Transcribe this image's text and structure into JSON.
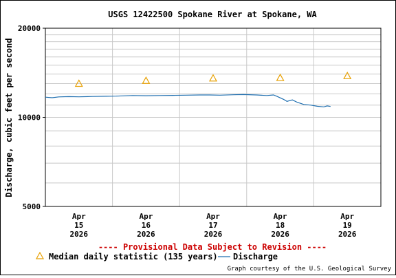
{
  "chart_data": {
    "type": "line",
    "title": "USGS 12422500 Spokane River at Spokane, WA",
    "ylabel": "Discharge, cubic feet per second",
    "xlabel": "",
    "y_scale": "log",
    "ylim": [
      5000,
      20000
    ],
    "y_ticks": [
      {
        "value": 5000,
        "label": "5000"
      },
      {
        "value": 10000,
        "label": "10000"
      },
      {
        "value": 20000,
        "label": "20000"
      }
    ],
    "x_ticks": [
      {
        "day": 15.5,
        "lines": [
          "Apr",
          "15",
          "2026"
        ]
      },
      {
        "day": 16.5,
        "lines": [
          "Apr",
          "16",
          "2026"
        ]
      },
      {
        "day": 17.5,
        "lines": [
          "Apr",
          "17",
          "2026"
        ]
      },
      {
        "day": 18.5,
        "lines": [
          "Apr",
          "18",
          "2026"
        ]
      },
      {
        "day": 19.5,
        "lines": [
          "Apr",
          "19",
          "2026"
        ]
      }
    ],
    "xlim": [
      15.0,
      20.0
    ],
    "grid": true,
    "series": [
      {
        "name": "Discharge",
        "style": "line",
        "color": "#1f6fb0",
        "points": [
          [
            15.0,
            11700
          ],
          [
            15.1,
            11650
          ],
          [
            15.2,
            11720
          ],
          [
            15.35,
            11750
          ],
          [
            15.5,
            11730
          ],
          [
            15.7,
            11760
          ],
          [
            15.9,
            11780
          ],
          [
            16.05,
            11790
          ],
          [
            16.3,
            11850
          ],
          [
            16.5,
            11830
          ],
          [
            16.7,
            11850
          ],
          [
            16.9,
            11860
          ],
          [
            17.1,
            11880
          ],
          [
            17.3,
            11900
          ],
          [
            17.45,
            11900
          ],
          [
            17.6,
            11880
          ],
          [
            17.8,
            11920
          ],
          [
            17.95,
            11940
          ],
          [
            18.15,
            11900
          ],
          [
            18.3,
            11850
          ],
          [
            18.4,
            11900
          ],
          [
            18.45,
            11780
          ],
          [
            18.55,
            11500
          ],
          [
            18.6,
            11320
          ],
          [
            18.68,
            11450
          ],
          [
            18.75,
            11250
          ],
          [
            18.85,
            11050
          ],
          [
            18.95,
            11000
          ],
          [
            19.05,
            10900
          ],
          [
            19.15,
            10850
          ],
          [
            19.2,
            10930
          ],
          [
            19.25,
            10880
          ]
        ]
      },
      {
        "name": "Median daily statistic (135 years)",
        "style": "marker",
        "marker": "triangle",
        "color": "#e8a000",
        "points": [
          [
            15.5,
            13000
          ],
          [
            16.5,
            13300
          ],
          [
            17.5,
            13550
          ],
          [
            18.5,
            13600
          ],
          [
            19.5,
            13800
          ]
        ]
      }
    ],
    "legend": {
      "position": "bottom",
      "entries": [
        {
          "label": "Median daily statistic (135 years)",
          "symbol": "triangle",
          "color": "#e8a000"
        },
        {
          "label": "Discharge",
          "symbol": "line",
          "color": "#1f6fb0"
        }
      ]
    },
    "annotations": {
      "provisional": "---- Provisional Data Subject to Revision ----",
      "provisional_color": "#cc0000",
      "credit": "Graph courtesy of the U.S. Geological Survey"
    }
  }
}
